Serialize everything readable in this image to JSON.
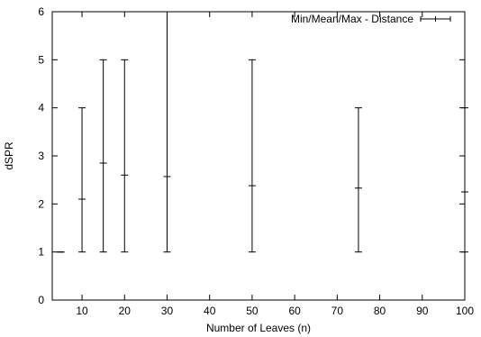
{
  "chart_data": {
    "type": "errorbar",
    "xlabel": "Number of Leaves (n)",
    "ylabel": "dSPR",
    "xlim": [
      3,
      100
    ],
    "ylim": [
      0,
      6
    ],
    "x_ticks": [
      10,
      20,
      30,
      40,
      50,
      60,
      70,
      80,
      90,
      100
    ],
    "y_ticks": [
      0,
      1,
      2,
      3,
      4,
      5,
      6
    ],
    "grid": false,
    "legend_position": "top-right",
    "series": [
      {
        "name": "Min/Mean/Max - Distance",
        "points": [
          {
            "x": 5,
            "min": 1,
            "mean": 1.0,
            "max": 1
          },
          {
            "x": 10,
            "min": 1,
            "mean": 2.1,
            "max": 4
          },
          {
            "x": 15,
            "min": 1,
            "mean": 2.85,
            "max": 5
          },
          {
            "x": 20,
            "min": 1,
            "mean": 2.6,
            "max": 5
          },
          {
            "x": 30,
            "min": 1,
            "mean": 2.57,
            "max": 6
          },
          {
            "x": 50,
            "min": 1,
            "mean": 2.38,
            "max": 5
          },
          {
            "x": 75,
            "min": 1,
            "mean": 2.33,
            "max": 4
          },
          {
            "x": 100,
            "min": 1,
            "mean": 2.25,
            "max": 4
          }
        ]
      }
    ]
  }
}
